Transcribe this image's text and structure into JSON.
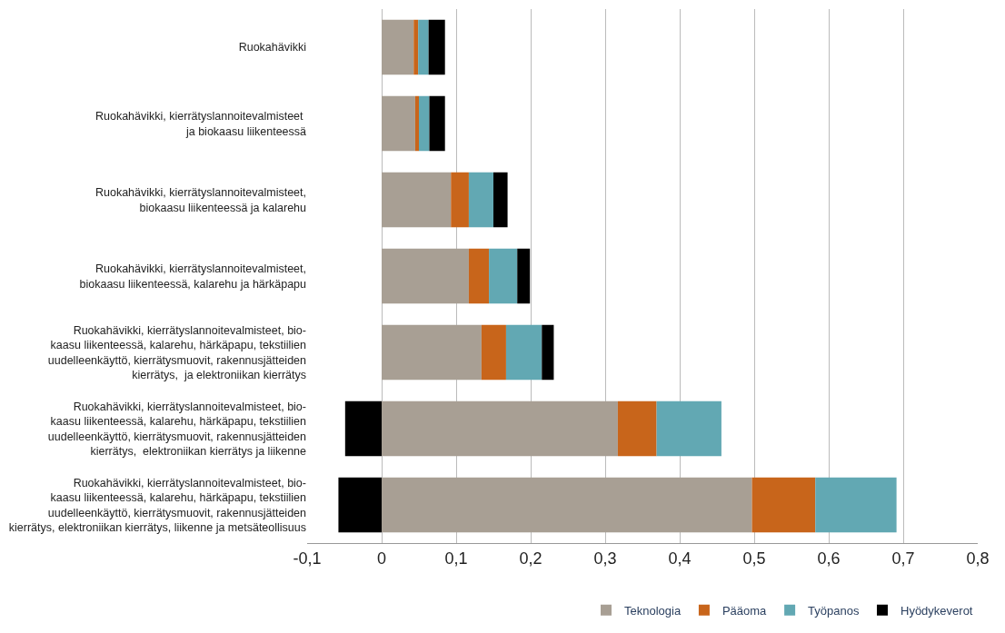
{
  "chart_data": {
    "type": "bar",
    "orientation": "horizontal",
    "stacked": true,
    "categories": [
      "Ruokahävikki",
      "Ruokahävikki, kierrätyslannoitevalmisteet \nja biokaasu liikenteessä",
      "Ruokahävikki, kierrätyslannoitevalmisteet,\nbiokaasu liikenteessä ja kalarehu",
      "Ruokahävikki, kierrätyslannoitevalmisteet,\nbiokaasu liikenteessä, kalarehu ja härkäpapu",
      "Ruokahävikki, kierrätyslannoitevalmisteet, bio-\nkaasu liikenteessä, kalarehu, härkäpapu, tekstiilien\nuudelleenkäyttö, kierrätysmuovit, rakennusjätteiden\nkierrätys,  ja elektroniikan kierrätys",
      "Ruokahävikki, kierrätyslannoitevalmisteet, bio-\nkaasu liikenteessä, kalarehu, härkäpapu, tekstiilien\nuudelleenkäyttö, kierrätysmuovit, rakennusjätteiden\nkierrätys,  elektroniikan kierrätys ja liikenne",
      "Ruokahävikki, kierrätyslannoitevalmisteet, bio-\nkaasu liikenteessä, kalarehu, härkäpapu, tekstiilien\nuudelleenkäyttö, kierrätysmuovit, rakennusjätteiden\nkierrätys, elektroniikan kierrätys, liikenne ja metsäteollisuus"
    ],
    "series": [
      {
        "name": "Teknologia",
        "color": "#a89f94",
        "values": [
          0.043,
          0.045,
          0.093,
          0.117,
          0.134,
          0.317,
          0.497
        ]
      },
      {
        "name": "Pääoma",
        "color": "#c8651b",
        "values": [
          0.006,
          0.005,
          0.024,
          0.027,
          0.033,
          0.052,
          0.085
        ]
      },
      {
        "name": "Työpanos",
        "color": "#62a8b3",
        "values": [
          0.014,
          0.014,
          0.033,
          0.038,
          0.048,
          0.087,
          0.109
        ]
      },
      {
        "name": "Hyödykeverot",
        "color": "#000000",
        "values": [
          0.022,
          0.021,
          0.019,
          0.017,
          0.016,
          -0.049,
          -0.058
        ]
      }
    ],
    "xlim": [
      -0.1,
      0.8
    ],
    "xticks": [
      {
        "value": -0.1,
        "label": "-0,1"
      },
      0,
      {
        "value": 0.1,
        "label": "0,1"
      },
      {
        "value": 0.2,
        "label": "0,2"
      },
      {
        "value": 0.3,
        "label": "0,3"
      },
      {
        "value": 0.4,
        "label": "0,4"
      },
      {
        "value": 0.5,
        "label": "0,5"
      },
      {
        "value": 0.6,
        "label": "0,6"
      },
      {
        "value": 0.7,
        "label": "0,7"
      },
      {
        "value": 0.8,
        "label": "0,8"
      }
    ],
    "grid": "x",
    "legend": "bottom right"
  }
}
